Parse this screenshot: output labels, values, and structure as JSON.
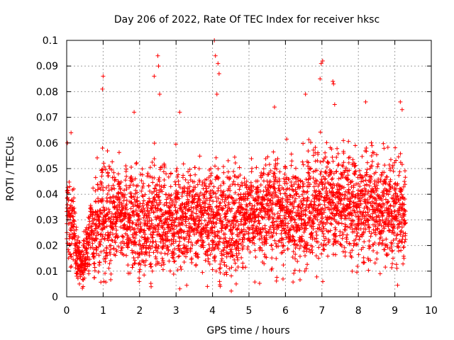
{
  "chart_data": {
    "type": "scatter",
    "title": "Day 206 of 2022, Rate Of TEC Index for receiver hksc",
    "xlabel": "GPS time / hours",
    "ylabel": "ROTI / TECUs",
    "xlim": [
      0,
      10
    ],
    "ylim": [
      0,
      0.1
    ],
    "x_ticks": [
      "0",
      "1",
      "2",
      "3",
      "4",
      "5",
      "6",
      "7",
      "8",
      "9",
      "10"
    ],
    "y_ticks": [
      "0",
      "0.01",
      "0.02",
      "0.03",
      "0.04",
      "0.05",
      "0.06",
      "0.07",
      "0.08",
      "0.09",
      "0.1"
    ],
    "grid": true,
    "marker": "+",
    "color": "#ff0000",
    "x_extent_hours": [
      0,
      9.3
    ],
    "envelope": {
      "x": [
        0,
        0.1,
        0.2,
        0.3,
        0.4,
        0.5,
        0.6,
        0.8,
        1.0,
        1.2,
        1.4,
        1.6,
        1.8,
        2.0,
        2.2,
        2.5,
        2.8,
        3.0,
        3.3,
        3.6,
        3.9,
        4.1,
        4.4,
        4.7,
        5.0,
        5.3,
        5.6,
        5.9,
        6.2,
        6.5,
        6.8,
        7.0,
        7.3,
        7.6,
        7.9,
        8.2,
        8.5,
        8.8,
        9.1,
        9.3
      ],
      "median": [
        0.028,
        0.03,
        0.025,
        0.015,
        0.012,
        0.015,
        0.022,
        0.028,
        0.033,
        0.03,
        0.034,
        0.031,
        0.032,
        0.029,
        0.028,
        0.031,
        0.03,
        0.029,
        0.03,
        0.032,
        0.031,
        0.03,
        0.029,
        0.031,
        0.032,
        0.033,
        0.034,
        0.033,
        0.032,
        0.033,
        0.035,
        0.036,
        0.037,
        0.036,
        0.035,
        0.036,
        0.035,
        0.034,
        0.033,
        0.032
      ],
      "upper": [
        0.055,
        0.06,
        0.048,
        0.03,
        0.022,
        0.032,
        0.045,
        0.058,
        0.075,
        0.065,
        0.062,
        0.06,
        0.068,
        0.062,
        0.06,
        0.07,
        0.06,
        0.068,
        0.062,
        0.06,
        0.065,
        0.07,
        0.065,
        0.068,
        0.06,
        0.065,
        0.068,
        0.07,
        0.065,
        0.068,
        0.07,
        0.072,
        0.07,
        0.068,
        0.07,
        0.072,
        0.07,
        0.068,
        0.072,
        0.065
      ]
    },
    "notable_points": [
      {
        "x": 0.02,
        "y": 0.06
      },
      {
        "x": 0.12,
        "y": 0.064
      },
      {
        "x": 0.35,
        "y": 0.005
      },
      {
        "x": 0.45,
        "y": 0.004
      },
      {
        "x": 0.98,
        "y": 0.081
      },
      {
        "x": 1.0,
        "y": 0.086
      },
      {
        "x": 1.85,
        "y": 0.072
      },
      {
        "x": 2.4,
        "y": 0.086
      },
      {
        "x": 2.5,
        "y": 0.094
      },
      {
        "x": 2.52,
        "y": 0.09
      },
      {
        "x": 2.55,
        "y": 0.079
      },
      {
        "x": 3.1,
        "y": 0.072
      },
      {
        "x": 4.05,
        "y": 0.1
      },
      {
        "x": 4.08,
        "y": 0.094
      },
      {
        "x": 4.15,
        "y": 0.091
      },
      {
        "x": 4.18,
        "y": 0.087
      },
      {
        "x": 4.12,
        "y": 0.079
      },
      {
        "x": 5.7,
        "y": 0.074
      },
      {
        "x": 6.55,
        "y": 0.079
      },
      {
        "x": 6.98,
        "y": 0.091
      },
      {
        "x": 7.02,
        "y": 0.092
      },
      {
        "x": 6.95,
        "y": 0.085
      },
      {
        "x": 7.3,
        "y": 0.084
      },
      {
        "x": 7.32,
        "y": 0.083
      },
      {
        "x": 7.35,
        "y": 0.075
      },
      {
        "x": 8.2,
        "y": 0.076
      },
      {
        "x": 9.15,
        "y": 0.076
      },
      {
        "x": 9.2,
        "y": 0.073
      },
      {
        "x": 2.35,
        "y": 0.01
      },
      {
        "x": 4.1,
        "y": 0.01
      },
      {
        "x": 8.95,
        "y": 0.015
      },
      {
        "x": 9.25,
        "y": 0.015
      }
    ]
  }
}
